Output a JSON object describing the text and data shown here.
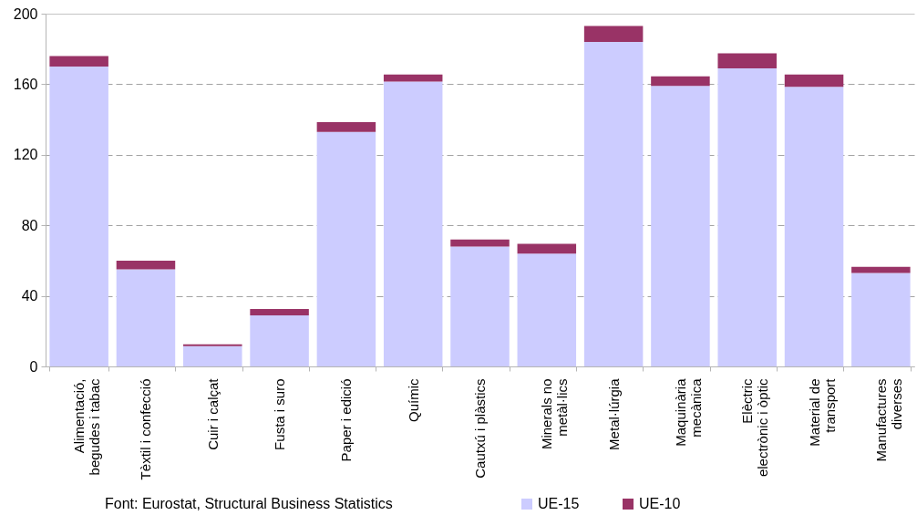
{
  "chart_data": {
    "type": "bar",
    "stacked": true,
    "categories": [
      "Alimentació, begudes i tabac",
      "Tèxtil i confecció",
      "Cuir i calçat",
      "Fusta i suro",
      "Paper i edició",
      "Químic",
      "Cautxú i plàstics",
      "Minerals no metàl·lics",
      "Metal·lúrgia",
      "Maquinària mecànica",
      "Elèctric electrònic i òptic",
      "Material de transport",
      "Manufactures diverses"
    ],
    "series": [
      {
        "name": "UE-15",
        "color": "#ccccff",
        "values": [
          170,
          55,
          11.5,
          29,
          133,
          161.5,
          68,
          64,
          184,
          159,
          169,
          158.5,
          53
        ]
      },
      {
        "name": "UE-10",
        "color": "#993366",
        "values": [
          6,
          5,
          1,
          3.5,
          5.5,
          4,
          4,
          5.5,
          9,
          5.5,
          8.5,
          7,
          3.5
        ]
      }
    ],
    "ylim": [
      0,
      200
    ],
    "yticks": [
      0,
      40,
      80,
      120,
      160,
      200
    ],
    "grid": "y",
    "legend": "bottom",
    "annotations": [
      "Font: Eurostat, Structural Business Statistics"
    ]
  }
}
